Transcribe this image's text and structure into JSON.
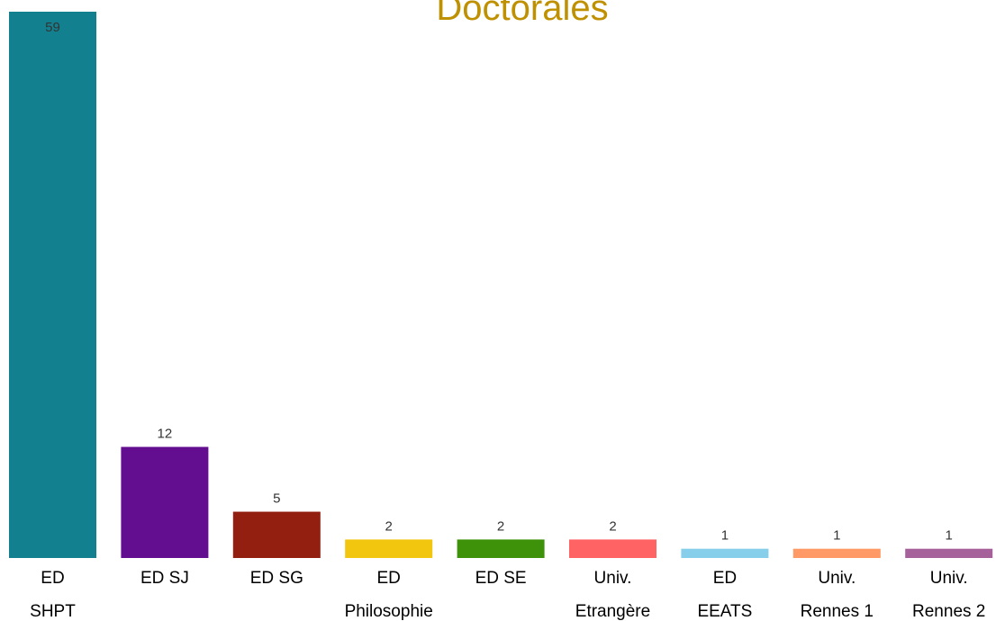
{
  "chart_data": {
    "type": "bar",
    "title": "Doctorales",
    "categories": [
      [
        "ED",
        "SHPT"
      ],
      [
        "ED SJ"
      ],
      [
        "ED SG"
      ],
      [
        "ED",
        "Philosophie"
      ],
      [
        "ED SE"
      ],
      [
        "Univ.",
        "Etrangère"
      ],
      [
        "ED",
        "EEATS"
      ],
      [
        "Univ.",
        "Rennes 1"
      ],
      [
        "Univ.",
        "Rennes 2"
      ]
    ],
    "values": [
      59,
      12,
      5,
      2,
      2,
      2,
      1,
      1,
      1
    ],
    "colors": [
      "#138090",
      "#630d91",
      "#921f10",
      "#f2c50f",
      "#3e9209",
      "#ff6363",
      "#87ceeb",
      "#ff9966",
      "#a6619a"
    ]
  }
}
